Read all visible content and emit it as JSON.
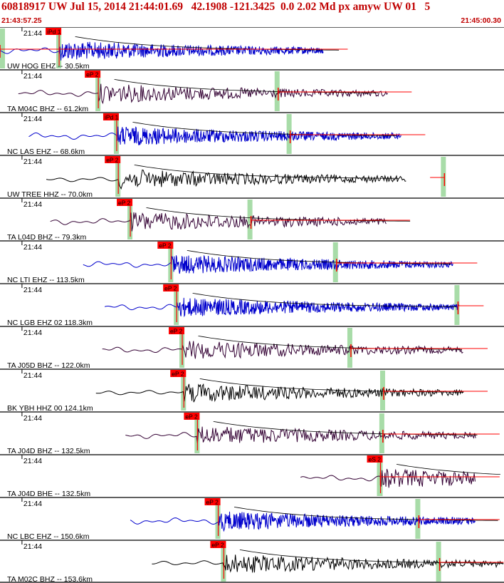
{
  "header": {
    "title": "60818917 UW Jul 15, 2014 21:44:01.69   42.1908 -121.3425  0.0 2.02 Md px amyw UW 01   5",
    "start_time": "21:43:57.25",
    "end_time": "21:45:00.30"
  },
  "colors": {
    "blue_trace": "#0000cc",
    "purple_trace": "#330033",
    "black_trace": "#000000",
    "pick_red": "#ff0000",
    "window_green": "#a8dca8",
    "header_text": "#c00000"
  },
  "chart_data": {
    "type": "seismogram",
    "x_unit": "seconds after 21:43:57.25",
    "x_range": [
      0,
      63.05
    ],
    "minute_tick_label": "21:44",
    "traces": [
      {
        "label": "UW HOG EHZ --  30.5km",
        "color": "blue",
        "pick": "iPd 1",
        "pick_time": 7.4,
        "coda_end": 40.5
      },
      {
        "label": "TA M04C BHZ --  61.2km",
        "color": "purple",
        "pick": "eP 2",
        "pick_time": 12.3,
        "s_time": 34.8,
        "coda_end": 48.5
      },
      {
        "label": "NC LAS EHZ --  68.6km",
        "color": "blue",
        "pick": "iPd 1",
        "pick_time": 14.6,
        "s_time": 36.3,
        "coda_end": 50.2
      },
      {
        "label": "UW TREE HHZ --  70.0km",
        "color": "black",
        "pick": "eP 2",
        "pick_time": 14.8,
        "s_time": 55.6,
        "coda_end": 50.8
      },
      {
        "label": "TA L04D BHZ --  79.3km",
        "color": "purple",
        "pick": "eP 2",
        "pick_time": 16.3,
        "s_time": 31.4,
        "coda_end": 48.3
      },
      {
        "label": "NC LTI EHZ --  113.5km",
        "color": "blue",
        "pick": "eP 2",
        "pick_time": 21.4,
        "s_time": 42.1,
        "coda_end": 56.7
      },
      {
        "label": "NC LGB EHZ 02 118.3km",
        "color": "blue",
        "pick": "eP 2",
        "pick_time": 22.1,
        "s_time": 57.3,
        "coda_end": 57.5
      },
      {
        "label": "TA J05D BHZ --  122.0km",
        "color": "purple",
        "pick": "eP 2",
        "pick_time": 22.8,
        "s_time": 43.9,
        "coda_end": 58.0
      },
      {
        "label": "BK YBH HHZ 00 124.1km",
        "color": "black",
        "pick": "eP 2",
        "pick_time": 23.0,
        "s_time": 48.0,
        "coda_end": 58.0
      },
      {
        "label": "TA J04D BHZ --  132.5km",
        "color": "purple",
        "pick": "eP 2",
        "pick_time": 24.7,
        "s_time": 47.9,
        "coda_end": 59.5
      },
      {
        "label": "TA J04D BHE --  132.5km",
        "color": "purple",
        "pick": "eS 2",
        "pick_time": 47.6,
        "s_time": 47.6,
        "coda_end": 59.5
      },
      {
        "label": "NC LBC EHZ --  150.6km",
        "color": "blue",
        "pick": "eP 2",
        "pick_time": 27.3,
        "s_time": 52.4,
        "coda_end": 59.5
      },
      {
        "label": "TA M02C BHZ --  153.6km",
        "color": "black",
        "pick": "eP 2",
        "pick_time": 28.0,
        "s_time": 55.0,
        "coda_end": 63.0
      }
    ]
  }
}
